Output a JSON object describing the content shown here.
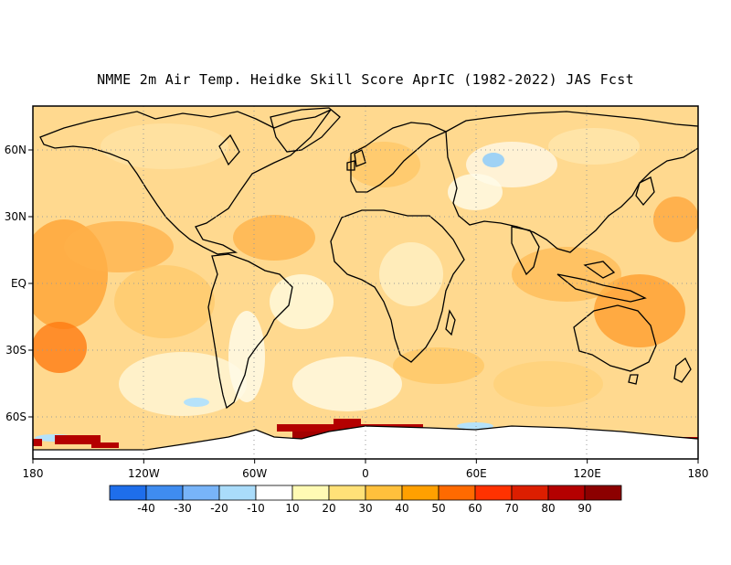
{
  "title": "NMME 2m Air Temp. Heidke Skill Score AprIC (1982-2022) JAS Fcst",
  "lon_ticks": [
    "180",
    "120W",
    "60W",
    "0",
    "60E",
    "120E",
    "180"
  ],
  "lat_ticks": [
    "60N",
    "30N",
    "EQ",
    "30S",
    "60S"
  ],
  "colorbar": {
    "levels": [
      "-40",
      "-30",
      "-20",
      "-10",
      "10",
      "20",
      "30",
      "40",
      "50",
      "60",
      "70",
      "80",
      "90"
    ],
    "colors": [
      "#1e6eeb",
      "#3f8cf0",
      "#78b4f8",
      "#aadcfa",
      "#ffffff",
      "#fffab4",
      "#ffe178",
      "#ffc03c",
      "#ffa000",
      "#ff6a00",
      "#ff3200",
      "#dc1e00",
      "#b40000",
      "#8c0000"
    ]
  },
  "colors": {
    "land_bg": "#ffdc9a",
    "coastline": "#000000",
    "grid": "#9a9a9a"
  }
}
